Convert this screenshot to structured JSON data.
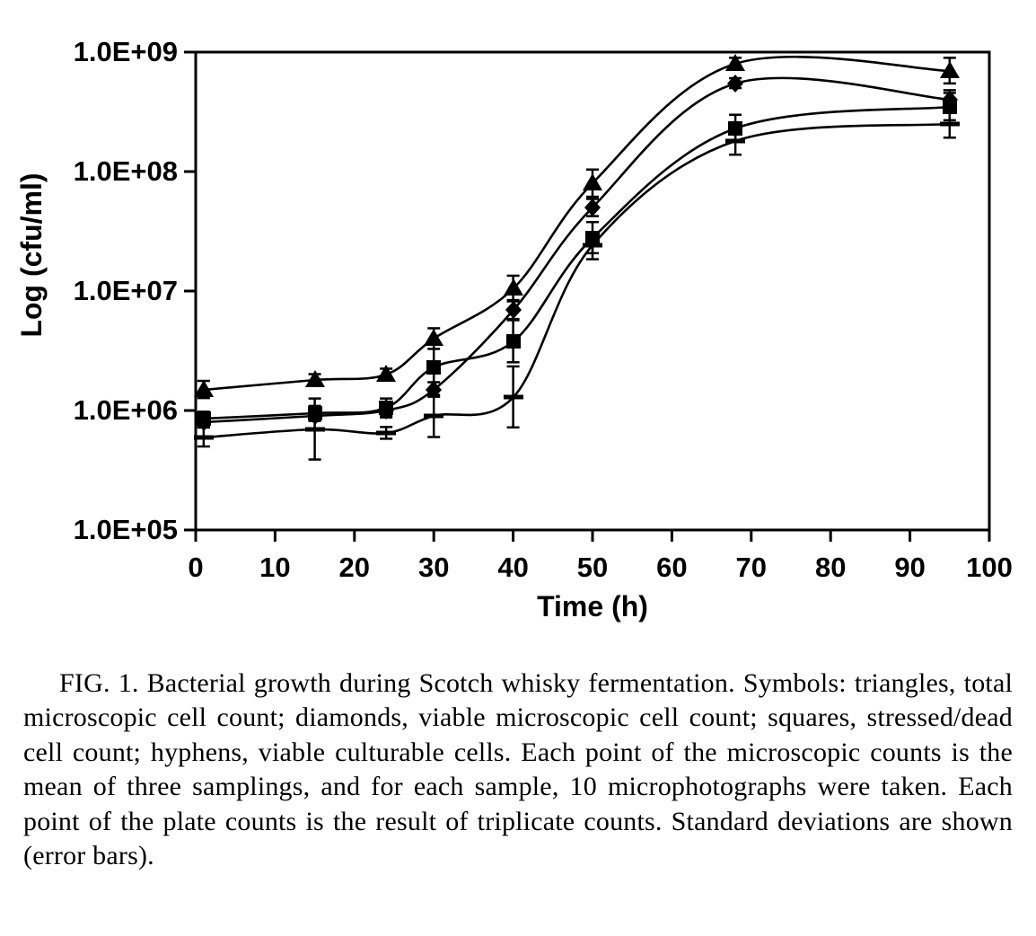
{
  "figure": {
    "caption": "FIG. 1.  Bacterial growth during Scotch whisky fermentation. Symbols: triangles, total microscopic cell count; diamonds, viable microscopic cell count; squares, stressed/dead cell count; hyphens, viable culturable cells. Each point of the microscopic counts is the mean of three samplings, and for each sample, 10 microphotographs were taken. Each point of the plate counts is the result of triplicate counts. Standard deviations are shown (error bars)."
  },
  "chart_data": {
    "type": "line",
    "title": "",
    "xlabel": "Time (h)",
    "ylabel": "Log (cfu/ml)",
    "xlim": [
      0,
      100
    ],
    "ylim": [
      100000.0,
      1000000000.0
    ],
    "yscale": "log",
    "grid": false,
    "legend_position": "none",
    "line_color": "#000000",
    "xticks": [
      0,
      10,
      20,
      30,
      40,
      50,
      60,
      70,
      80,
      90,
      100
    ],
    "ytick_values": [
      100000.0,
      1000000.0,
      10000000.0,
      100000000.0,
      1000000000.0
    ],
    "ytick_labels": [
      "1.0E+05",
      "1.0E+06",
      "1.0E+07",
      "1.0E+08",
      "1.0E+09"
    ],
    "x": [
      1,
      15,
      24,
      30,
      40,
      50,
      68,
      95
    ],
    "series": [
      {
        "name": "Total microscopic cell count",
        "marker": "triangle",
        "values": [
          1500000.0,
          1800000.0,
          2000000.0,
          4000000.0,
          10500000.0,
          80000000.0,
          800000000.0,
          700000000.0
        ],
        "err_factor": [
          1.18,
          1.12,
          1.12,
          1.22,
          1.28,
          1.3,
          1.12,
          1.28
        ]
      },
      {
        "name": "Viable microscopic cell count",
        "marker": "diamond",
        "values": [
          800000.0,
          900000.0,
          1000000.0,
          1500000.0,
          7000000.0,
          50000000.0,
          550000000.0,
          400000000.0
        ],
        "err_factor": [
          1.1,
          1.1,
          1.1,
          1.15,
          1.2,
          1.18,
          1.1,
          1.2
        ]
      },
      {
        "name": "Stressed/dead cell count",
        "marker": "square",
        "values": [
          850000.0,
          950000.0,
          1050000.0,
          2300000.0,
          3800000.0,
          28000000.0,
          230000000.0,
          350000000.0
        ],
        "err_factor": [
          1.15,
          1.15,
          1.2,
          1.55,
          1.5,
          1.35,
          1.3,
          1.3
        ]
      },
      {
        "name": "Viable culturable cells",
        "marker": "hyphen",
        "values": [
          600000.0,
          700000.0,
          650000.0,
          900000.0,
          1300000.0,
          24000000.0,
          180000000.0,
          250000000.0
        ],
        "err_factor": [
          1.2,
          1.8,
          1.12,
          1.5,
          1.8,
          1.3,
          1.3,
          1.3
        ]
      }
    ]
  }
}
